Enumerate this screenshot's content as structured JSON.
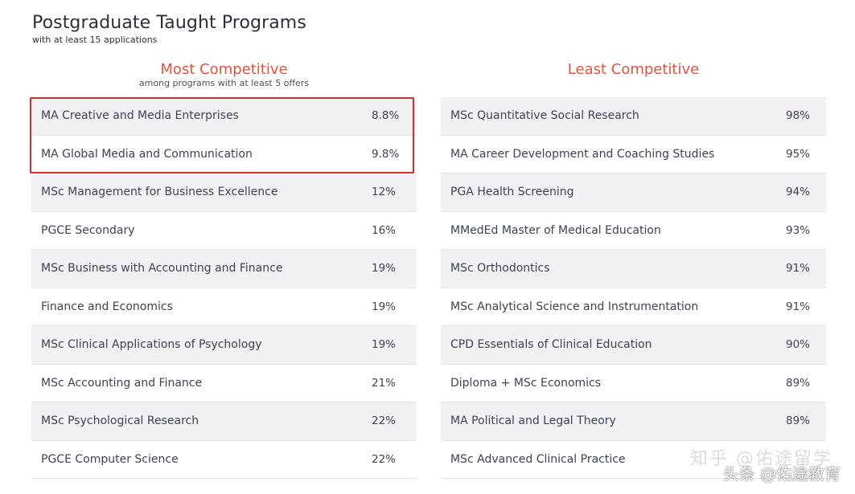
{
  "header": {
    "title": "Postgraduate Taught Programs",
    "subtitle": "with at least 15 applications"
  },
  "most_competitive": {
    "title": "Most Competitive",
    "subtitle": "among programs with at least 5 offers",
    "rows": [
      {
        "program": "MA Creative and Media Enterprises",
        "rate": "8.8%"
      },
      {
        "program": "MA Global Media and Communication",
        "rate": "9.8%"
      },
      {
        "program": "MSc Management for Business Excellence",
        "rate": "12%"
      },
      {
        "program": "PGCE Secondary",
        "rate": "16%"
      },
      {
        "program": "MSc Business with Accounting and Finance",
        "rate": "19%"
      },
      {
        "program": "Finance and Economics",
        "rate": "19%"
      },
      {
        "program": "MSc Clinical Applications of Psychology",
        "rate": "19%"
      },
      {
        "program": "MSc Accounting and Finance",
        "rate": "21%"
      },
      {
        "program": "MSc Psychological Research",
        "rate": "22%"
      },
      {
        "program": "PGCE Computer Science",
        "rate": "22%"
      }
    ],
    "highlight_color": "#e02a2a"
  },
  "least_competitive": {
    "title": "Least Competitive",
    "rows": [
      {
        "program": "MSc Quantitative Social Research",
        "rate": "98%"
      },
      {
        "program": "MA Career Development and Coaching Studies",
        "rate": "95%"
      },
      {
        "program": "PGA Health Screening",
        "rate": "94%"
      },
      {
        "program": "MMedEd Master of Medical Education",
        "rate": "93%"
      },
      {
        "program": "MSc Orthodontics",
        "rate": "91%"
      },
      {
        "program": "MSc Analytical Science and Instrumentation",
        "rate": "91%"
      },
      {
        "program": "CPD Essentials of Clinical Education",
        "rate": "90%"
      },
      {
        "program": "Diploma + MSc Economics",
        "rate": "89%"
      },
      {
        "program": "MA Political and Legal Theory",
        "rate": "89%"
      },
      {
        "program": "MSc Advanced Clinical Practice",
        "rate": ""
      }
    ]
  },
  "watermark": {
    "ghost": "知乎 @佑途留学",
    "text": "头条 @佑途教育"
  },
  "colors": {
    "accent": "#e2533a",
    "row_alt": "#f1f1f4",
    "text": "#3d4257"
  }
}
